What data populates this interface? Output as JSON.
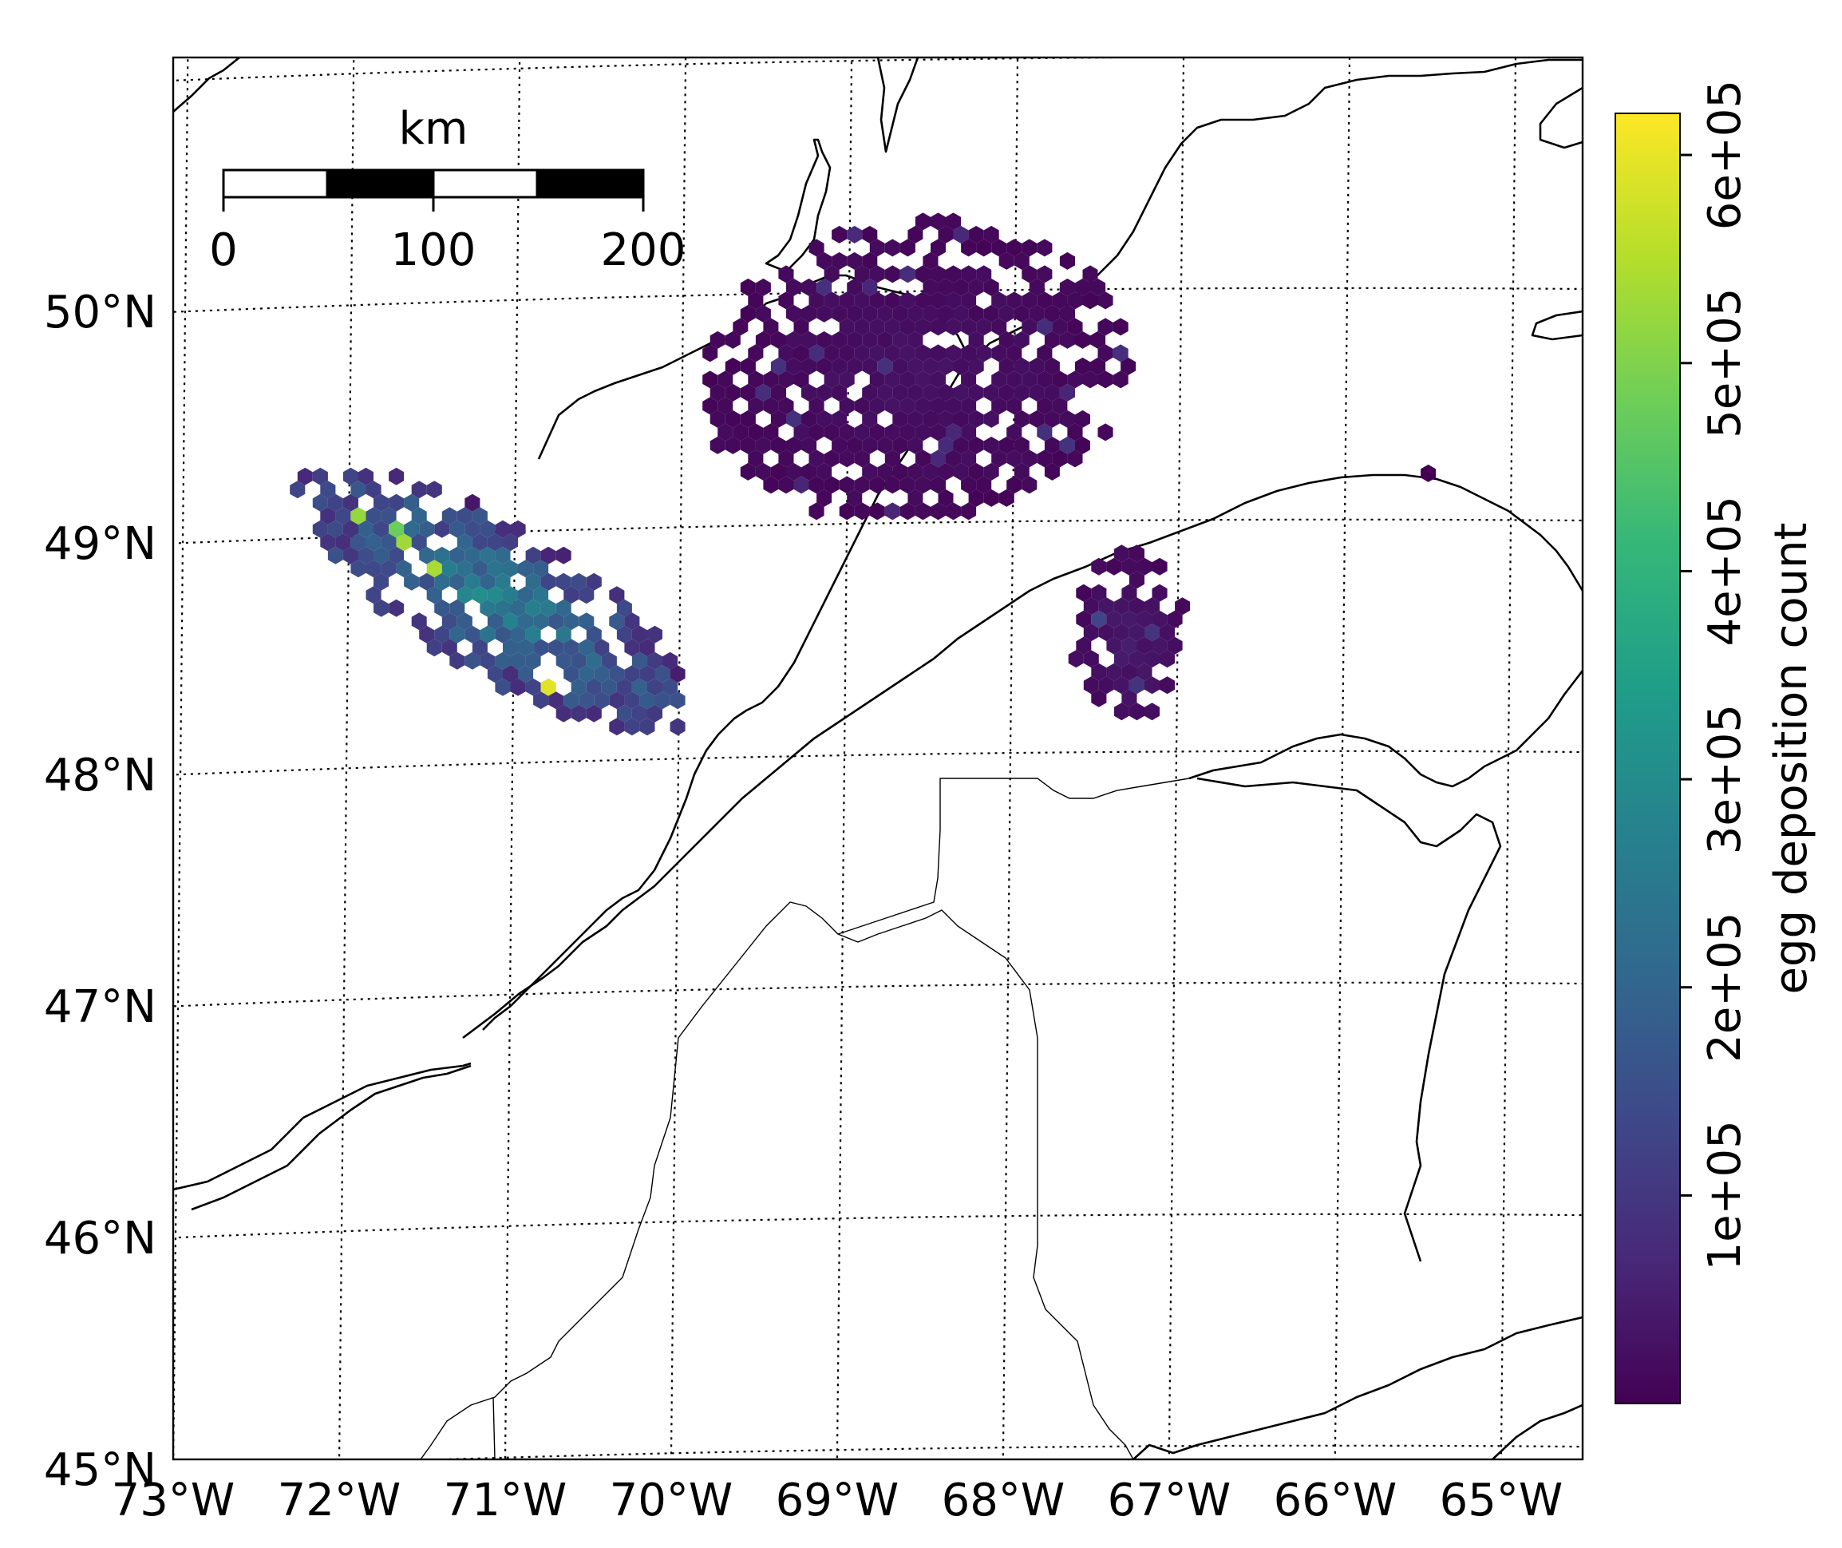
{
  "map": {
    "lat_labels": [
      "50°N",
      "49°N",
      "48°N",
      "47°N",
      "46°N",
      "45°N"
    ],
    "lon_labels": [
      "73°W",
      "72°W",
      "71°W",
      "70°W",
      "69°W",
      "68°W",
      "67°W",
      "66°W",
      "65°W"
    ],
    "extent": {
      "lon_min": -73,
      "lon_max": -64.5,
      "lat_min": 45,
      "lat_max": 51
    },
    "gridline_style": "dotted",
    "colors": {
      "coast": "#000000",
      "border": "#000000",
      "grid": "#000000"
    }
  },
  "scalebar": {
    "unit_label": "km",
    "tick_labels": [
      "0",
      "100",
      "200"
    ],
    "segments_pattern": [
      "white",
      "black",
      "white",
      "black"
    ]
  },
  "colorbar": {
    "label": "egg deposition count",
    "tick_labels": [
      "1e+05",
      "2e+05",
      "3e+05",
      "4e+05",
      "5e+05",
      "6e+05"
    ],
    "tick_values": [
      100000,
      200000,
      300000,
      400000,
      500000,
      600000
    ],
    "range": [
      0,
      620000
    ],
    "colormap": "viridis",
    "stops": [
      "#440154",
      "#482878",
      "#3e4989",
      "#31688e",
      "#26828e",
      "#1f9e89",
      "#35b779",
      "#6ece58",
      "#b5de2b",
      "#fde725"
    ]
  },
  "hexbin": {
    "clusters": [
      {
        "name": "",
        "center_lon": -71.1,
        "center_lat": 48.7,
        "extent_lon": [
          -72.75,
          -70.1
        ],
        "extent_lat": [
          48.15,
          49.55
        ],
        "peak_value": 600000,
        "typical_value": 180000
      },
      {
        "name": "",
        "center_lon": -68.6,
        "center_lat": 49.65,
        "extent_lon": [
          -70.0,
          -67.4
        ],
        "extent_lat": [
          48.85,
          50.45
        ],
        "peak_value": 90000,
        "typical_value": 20000
      },
      {
        "name": "",
        "center_lon": -67.3,
        "center_lat": 48.5,
        "extent_lon": [
          -67.6,
          -66.9
        ],
        "extent_lat": [
          48.0,
          48.9
        ],
        "peak_value": 130000,
        "typical_value": 30000
      }
    ]
  }
}
